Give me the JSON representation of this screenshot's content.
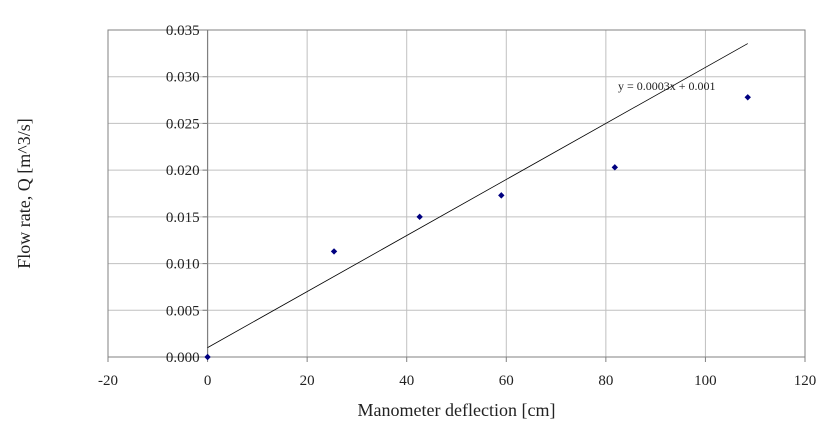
{
  "chart_data": {
    "type": "scatter",
    "title": "",
    "xlabel": "Manometer deflection [cm]",
    "ylabel": "Flow rate, Q [m^3/s]",
    "xlim": [
      -20,
      120
    ],
    "ylim": [
      0,
      0.035
    ],
    "x_ticks": [
      -20,
      0,
      20,
      40,
      60,
      80,
      100,
      120
    ],
    "x_tick_labels": [
      "-20",
      "0",
      "20",
      "40",
      "60",
      "80",
      "100",
      "120"
    ],
    "y_ticks": [
      0,
      0.005,
      0.01,
      0.015,
      0.02,
      0.025,
      0.03,
      0.035
    ],
    "y_tick_labels": [
      "0.000",
      "0.005",
      "0.010",
      "0.015",
      "0.020",
      "0.025",
      "0.030",
      "0.035"
    ],
    "grid": true,
    "legend": "none",
    "series": [
      {
        "x": [
          0,
          25.4,
          42.6,
          59.0,
          81.8,
          108.5
        ],
        "y": [
          0.0,
          0.0113,
          0.015,
          0.0173,
          0.0203,
          0.0278
        ],
        "marker": "diamond",
        "color": "#000080"
      }
    ],
    "trendline": {
      "slope": 0.0003,
      "intercept": 0.001,
      "x_range": [
        0,
        108.5
      ],
      "equation_label": "y = 0.0003x + 0.001",
      "color": "#000000"
    }
  },
  "colors": {
    "plot_border": "#808080",
    "grid": "#c0c0c0",
    "marker": "#000080",
    "trendline": "#000000",
    "text": "#222222"
  }
}
